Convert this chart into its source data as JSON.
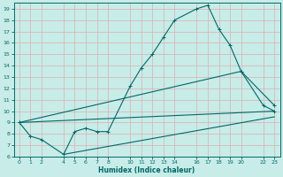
{
  "xlabel": "Humidex (Indice chaleur)",
  "bg_color": "#c8ece8",
  "grid_color": "#b0d8d0",
  "line_color": "#006868",
  "xlim": [
    -0.5,
    23.5
  ],
  "ylim": [
    6,
    19.5
  ],
  "xticks": [
    0,
    1,
    2,
    4,
    5,
    6,
    7,
    8,
    10,
    11,
    12,
    13,
    14,
    16,
    17,
    18,
    19,
    20,
    22,
    23
  ],
  "yticks": [
    6,
    7,
    8,
    9,
    10,
    11,
    12,
    13,
    14,
    15,
    16,
    17,
    18,
    19
  ],
  "line1_x": [
    0,
    1,
    2,
    4,
    5,
    6,
    7,
    8,
    10,
    11,
    12,
    13,
    14,
    16,
    17,
    18,
    19,
    20,
    22,
    23
  ],
  "line1_y": [
    9.0,
    7.8,
    7.5,
    6.2,
    8.2,
    8.5,
    8.2,
    8.2,
    12.2,
    13.8,
    15.0,
    16.5,
    18.0,
    19.0,
    19.3,
    17.2,
    15.8,
    13.5,
    10.5,
    10.0
  ],
  "line2_x": [
    0,
    23
  ],
  "line2_y": [
    9.0,
    10.0
  ],
  "line3_x": [
    0,
    20,
    23
  ],
  "line3_y": [
    9.0,
    13.5,
    10.5
  ],
  "line4_x": [
    4,
    23
  ],
  "line4_y": [
    6.2,
    9.5
  ]
}
